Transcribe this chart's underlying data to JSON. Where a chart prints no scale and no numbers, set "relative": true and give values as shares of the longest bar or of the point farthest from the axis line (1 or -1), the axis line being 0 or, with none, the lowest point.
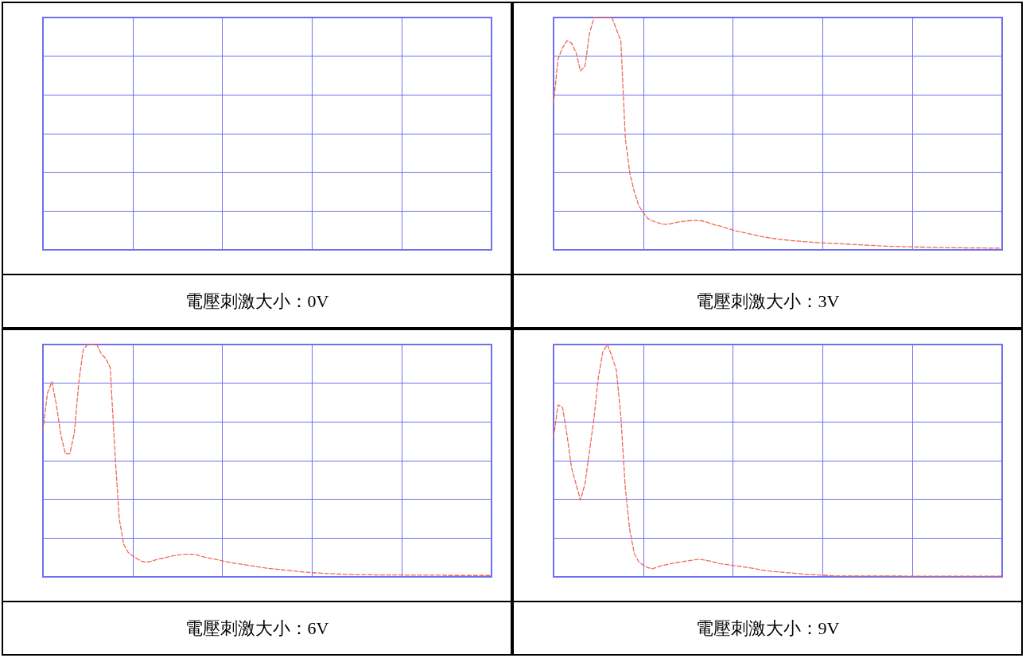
{
  "chart_data": [
    {
      "type": "other",
      "annotations": [
        "電壓刺激大小：0V"
      ]
    },
    {
      "type": "line",
      "relative": true,
      "grid": true,
      "line_style": "dashed",
      "marker": "none",
      "annotations": [
        "電壓刺激大小：3V"
      ],
      "categories": [
        null,
        null,
        null,
        null,
        null,
        null,
        null,
        null,
        null,
        null,
        null,
        null,
        null,
        null,
        null,
        null,
        null,
        null,
        null,
        null,
        null,
        null,
        null,
        null,
        null,
        null,
        null,
        null,
        null,
        null,
        null,
        null,
        null,
        null,
        null,
        null,
        null,
        null,
        null,
        null,
        null,
        null,
        null,
        null,
        null,
        null,
        null,
        null,
        null,
        null,
        null,
        null,
        null,
        null,
        null,
        null,
        null,
        null,
        null,
        null,
        null,
        null,
        null,
        null,
        null,
        null,
        null,
        null,
        null,
        null,
        null,
        null,
        null,
        null,
        null,
        null,
        null,
        null,
        null,
        null,
        null,
        null,
        null,
        null,
        null,
        null,
        null,
        null,
        null,
        null,
        null,
        null,
        null,
        null,
        null,
        null,
        null,
        null,
        null,
        null,
        null
      ],
      "series": [
        {
          "color": "#ee6a55",
          "values": [
            0.63,
            0.82,
            0.87,
            0.9,
            0.89,
            0.85,
            0.77,
            0.79,
            0.93,
            1,
            1,
            1,
            1,
            1,
            0.95,
            0.9,
            0.48,
            0.33,
            0.25,
            0.19,
            0.16,
            0.135,
            0.125,
            0.118,
            0.112,
            0.109,
            0.112,
            0.116,
            0.12,
            0.123,
            0.125,
            0.126,
            0.126,
            0.125,
            0.12,
            0.113,
            0.107,
            0.103,
            0.097,
            0.091,
            0.085,
            0.08,
            0.076,
            0.072,
            0.067,
            0.063,
            0.059,
            0.055,
            0.052,
            0.049,
            0.046,
            0.044,
            0.042,
            0.04,
            0.038,
            0.037,
            0.035,
            0.034,
            0.032,
            0.031,
            0.03,
            0.029,
            0.028,
            0.027,
            0.026,
            0.025,
            0.024,
            0.023,
            0.022,
            0.021,
            0.02,
            0.019,
            0.018,
            0.017,
            0.016,
            0.015,
            0.015,
            0.014,
            0.014,
            0.013,
            0.013,
            0.012,
            0.012,
            0.011,
            0.011,
            0.01,
            0.01,
            0.01,
            0.009,
            0.009,
            0.009,
            0.009,
            0.008,
            0.008,
            0.008,
            0.008,
            0.008,
            0.007,
            0.007,
            0.007,
            0.007
          ]
        }
      ]
    },
    {
      "type": "line",
      "relative": true,
      "grid": true,
      "line_style": "dashed",
      "marker": "none",
      "annotations": [
        "電壓刺激大小：6V"
      ],
      "categories": [
        null,
        null,
        null,
        null,
        null,
        null,
        null,
        null,
        null,
        null,
        null,
        null,
        null,
        null,
        null,
        null,
        null,
        null,
        null,
        null,
        null,
        null,
        null,
        null,
        null,
        null,
        null,
        null,
        null,
        null,
        null,
        null,
        null,
        null,
        null,
        null,
        null,
        null,
        null,
        null,
        null,
        null,
        null,
        null,
        null,
        null,
        null,
        null,
        null,
        null,
        null,
        null,
        null,
        null,
        null,
        null,
        null,
        null,
        null,
        null,
        null,
        null,
        null,
        null,
        null,
        null,
        null,
        null,
        null,
        null,
        null,
        null,
        null,
        null,
        null,
        null,
        null,
        null,
        null,
        null,
        null,
        null,
        null,
        null,
        null,
        null,
        null,
        null,
        null,
        null,
        null,
        null,
        null,
        null,
        null,
        null,
        null,
        null,
        null,
        null,
        null
      ],
      "series": [
        {
          "color": "#ee6a55",
          "values": [
            0.63,
            0.79,
            0.84,
            0.74,
            0.61,
            0.53,
            0.53,
            0.62,
            0.84,
            0.98,
            1,
            1,
            1,
            0.96,
            0.94,
            0.9,
            0.55,
            0.25,
            0.14,
            0.105,
            0.09,
            0.078,
            0.067,
            0.063,
            0.066,
            0.072,
            0.078,
            0.081,
            0.086,
            0.09,
            0.094,
            0.097,
            0.097,
            0.097,
            0.097,
            0.09,
            0.085,
            0.081,
            0.077,
            0.073,
            0.069,
            0.065,
            0.061,
            0.058,
            0.055,
            0.052,
            0.049,
            0.046,
            0.043,
            0.04,
            0.037,
            0.035,
            0.033,
            0.031,
            0.029,
            0.027,
            0.025,
            0.023,
            0.021,
            0.02,
            0.018,
            0.017,
            0.016,
            0.015,
            0.014,
            0.013,
            0.012,
            0.011,
            0.01,
            0.01,
            0.009,
            0.009,
            0.009,
            0.009,
            0.008,
            0.008,
            0.008,
            0.008,
            0.008,
            0.008,
            0.008,
            0.007,
            0.007,
            0.007,
            0.007,
            0.007,
            0.007,
            0.007,
            0.007,
            0.007,
            0.006,
            0.006,
            0.006,
            0.006,
            0.006,
            0.006,
            0.006,
            0.006,
            0.006,
            0.006,
            0.006
          ]
        }
      ]
    },
    {
      "type": "line",
      "relative": true,
      "grid": true,
      "line_style": "dashed",
      "marker": "none",
      "annotations": [
        "電壓刺激大小：9V"
      ],
      "categories": [
        null,
        null,
        null,
        null,
        null,
        null,
        null,
        null,
        null,
        null,
        null,
        null,
        null,
        null,
        null,
        null,
        null,
        null,
        null,
        null,
        null,
        null,
        null,
        null,
        null,
        null,
        null,
        null,
        null,
        null,
        null,
        null,
        null,
        null,
        null,
        null,
        null,
        null,
        null,
        null,
        null,
        null,
        null,
        null,
        null,
        null,
        null,
        null,
        null,
        null,
        null,
        null,
        null,
        null,
        null,
        null,
        null,
        null,
        null,
        null,
        null,
        null,
        null,
        null,
        null,
        null,
        null,
        null,
        null,
        null,
        null,
        null,
        null,
        null,
        null,
        null,
        null,
        null,
        null,
        null,
        null,
        null,
        null,
        null,
        null,
        null,
        null,
        null,
        null,
        null,
        null,
        null,
        null,
        null,
        null,
        null,
        null,
        null,
        null,
        null,
        null
      ],
      "series": [
        {
          "color": "#ee6a55",
          "values": [
            0.6,
            0.74,
            0.73,
            0.61,
            0.47,
            0.4,
            0.33,
            0.4,
            0.54,
            0.68,
            0.86,
            0.97,
            1,
            0.95,
            0.89,
            0.69,
            0.38,
            0.2,
            0.1,
            0.065,
            0.05,
            0.04,
            0.035,
            0.041,
            0.048,
            0.052,
            0.056,
            0.06,
            0.063,
            0.066,
            0.069,
            0.072,
            0.075,
            0.074,
            0.071,
            0.067,
            0.062,
            0.057,
            0.055,
            0.052,
            0.049,
            0.047,
            0.044,
            0.041,
            0.038,
            0.035,
            0.031,
            0.028,
            0.025,
            0.023,
            0.022,
            0.02,
            0.018,
            0.017,
            0.015,
            0.013,
            0.011,
            0.01,
            0.009,
            0.008,
            0.007,
            0.006,
            0.005,
            0.004,
            0.004,
            0.004,
            0.004,
            0.004,
            0.004,
            0.004,
            0.004,
            0.004,
            0.004,
            0.004,
            0.004,
            0.004,
            0.004,
            0.004,
            0.003,
            0.003,
            0.003,
            0.003,
            0.003,
            0.003,
            0.003,
            0.003,
            0.003,
            0.003,
            0.003,
            0.003,
            0.003,
            0.003,
            0.003,
            0.003,
            0.003,
            0.003,
            0.003,
            0.003,
            0.003,
            0.003,
            0.003
          ]
        }
      ]
    }
  ]
}
